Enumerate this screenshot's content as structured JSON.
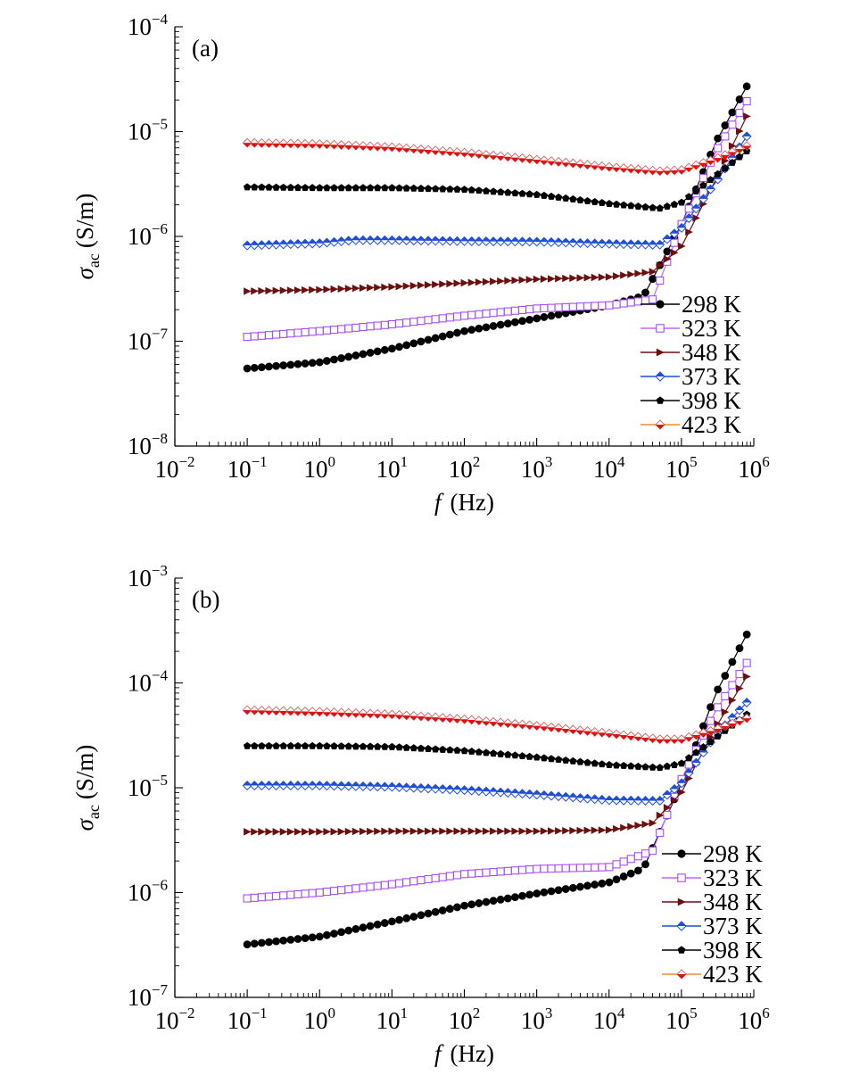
{
  "chart_data": [
    {
      "type": "scatter",
      "panel_label": "(a)",
      "xlabel": {
        "italic": "f",
        "rest": "(Hz)"
      },
      "ylabel": {
        "symbol": "σ",
        "subscript": "ac",
        "rest": "(S/m)"
      },
      "x_scale": "log",
      "y_scale": "log",
      "xlim": [
        0.01,
        1000000
      ],
      "ylim": [
        1e-08,
        0.0001
      ],
      "x_ticks": [
        {
          "base": "10",
          "exp": "−2",
          "value": 0.01
        },
        {
          "base": "10",
          "exp": "−1",
          "value": 0.1
        },
        {
          "base": "10",
          "exp": "0",
          "value": 1
        },
        {
          "base": "10",
          "exp": "1",
          "value": 10
        },
        {
          "base": "10",
          "exp": "2",
          "value": 100
        },
        {
          "base": "10",
          "exp": "3",
          "value": 1000
        },
        {
          "base": "10",
          "exp": "4",
          "value": 10000
        },
        {
          "base": "10",
          "exp": "5",
          "value": 100000
        },
        {
          "base": "10",
          "exp": "6",
          "value": 1000000
        }
      ],
      "y_ticks": [
        {
          "base": "10",
          "exp": "−8",
          "value": 1e-08
        },
        {
          "base": "10",
          "exp": "−7",
          "value": 1e-07
        },
        {
          "base": "10",
          "exp": "−6",
          "value": 1e-06
        },
        {
          "base": "10",
          "exp": "−5",
          "value": 1e-05
        },
        {
          "base": "10",
          "exp": "−4",
          "value": 0.0001
        }
      ],
      "grid": false,
      "legend_position": "lower-right",
      "series": [
        {
          "name": "298 K",
          "color": "#000000",
          "line_color": "#000000",
          "marker": "circle-filled",
          "anchors": [
            [
              0.1,
              5.5e-08
            ],
            [
              1,
              6.3e-08
            ],
            [
              10,
              8.5e-08
            ],
            [
              100,
              1.25e-07
            ],
            [
              1000,
              1.65e-07
            ],
            [
              10000,
              2.2e-07
            ],
            [
              30000,
              2.7e-07
            ],
            [
              100000,
              1.3e-06
            ],
            [
              300000,
              8e-06
            ],
            [
              800000,
              2.7e-05
            ]
          ]
        },
        {
          "name": "323 K",
          "color": "#a64dff",
          "line_color": "#c266ff",
          "marker": "square-open",
          "anchors": [
            [
              0.1,
              1.1e-07
            ],
            [
              1,
              1.25e-07
            ],
            [
              10,
              1.45e-07
            ],
            [
              100,
              1.75e-07
            ],
            [
              1000,
              2.05e-07
            ],
            [
              10000,
              2.2e-07
            ],
            [
              40000,
              2.5e-07
            ],
            [
              100000,
              1.3e-06
            ],
            [
              300000,
              6.5e-06
            ],
            [
              800000,
              1.95e-05
            ]
          ]
        },
        {
          "name": "348 K",
          "color": "#6b0f0f",
          "line_color": "#6b0f0f",
          "marker": "triangle-right-filled",
          "anchors": [
            [
              0.1,
              3e-07
            ],
            [
              1,
              3.1e-07
            ],
            [
              10,
              3.3e-07
            ],
            [
              100,
              3.6e-07
            ],
            [
              1000,
              3.9e-07
            ],
            [
              10000,
              4.1e-07
            ],
            [
              40000,
              4.6e-07
            ],
            [
              100000,
              8e-07
            ],
            [
              300000,
              3.5e-06
            ],
            [
              800000,
              1.4e-05
            ]
          ]
        },
        {
          "name": "373 K",
          "color": "#1f4fd6",
          "line_color": "#1f4fd6",
          "marker": "diamond-half",
          "anchors": [
            [
              0.1,
              8.2e-07
            ],
            [
              1,
              8.6e-07
            ],
            [
              3,
              9.2e-07
            ],
            [
              10,
              9.2e-07
            ],
            [
              100,
              9e-07
            ],
            [
              1000,
              8.9e-07
            ],
            [
              10000,
              8.5e-07
            ],
            [
              50000,
              8.3e-07
            ],
            [
              100000,
              1.2e-06
            ],
            [
              300000,
              3.3e-06
            ],
            [
              800000,
              9e-06
            ]
          ]
        },
        {
          "name": "398 K",
          "color": "#000000",
          "line_color": "#000000",
          "marker": "pentagon-filled",
          "anchors": [
            [
              0.1,
              2.95e-06
            ],
            [
              1,
              2.9e-06
            ],
            [
              10,
              2.9e-06
            ],
            [
              100,
              2.8e-06
            ],
            [
              1000,
              2.5e-06
            ],
            [
              10000,
              2.05e-06
            ],
            [
              50000,
              1.85e-06
            ],
            [
              100000,
              2.1e-06
            ],
            [
              300000,
              3.8e-06
            ],
            [
              800000,
              6.5e-06
            ]
          ]
        },
        {
          "name": "423 K",
          "color": "#e01010",
          "line_color": "#f08c2a",
          "marker": "diamond-bicolor",
          "anchors": [
            [
              0.1,
              7.8e-06
            ],
            [
              1,
              7.6e-06
            ],
            [
              10,
              7.1e-06
            ],
            [
              100,
              6.3e-06
            ],
            [
              1000,
              5.4e-06
            ],
            [
              10000,
              4.6e-06
            ],
            [
              50000,
              4.2e-06
            ],
            [
              100000,
              4.3e-06
            ],
            [
              300000,
              5.5e-06
            ],
            [
              800000,
              7.3e-06
            ]
          ]
        }
      ]
    },
    {
      "type": "scatter",
      "panel_label": "(b)",
      "xlabel": {
        "italic": "f",
        "rest": "(Hz)"
      },
      "ylabel": {
        "symbol": "σ",
        "subscript": "ac",
        "rest": "(S/m)"
      },
      "x_scale": "log",
      "y_scale": "log",
      "xlim": [
        0.01,
        1000000
      ],
      "ylim": [
        1e-07,
        0.001
      ],
      "x_ticks": [
        {
          "base": "10",
          "exp": "−2",
          "value": 0.01
        },
        {
          "base": "10",
          "exp": "−1",
          "value": 0.1
        },
        {
          "base": "10",
          "exp": "0",
          "value": 1
        },
        {
          "base": "10",
          "exp": "1",
          "value": 10
        },
        {
          "base": "10",
          "exp": "2",
          "value": 100
        },
        {
          "base": "10",
          "exp": "3",
          "value": 1000
        },
        {
          "base": "10",
          "exp": "4",
          "value": 10000
        },
        {
          "base": "10",
          "exp": "5",
          "value": 100000
        },
        {
          "base": "10",
          "exp": "6",
          "value": 1000000
        }
      ],
      "y_ticks": [
        {
          "base": "10",
          "exp": "−7",
          "value": 1e-07
        },
        {
          "base": "10",
          "exp": "−6",
          "value": 1e-06
        },
        {
          "base": "10",
          "exp": "−5",
          "value": 1e-05
        },
        {
          "base": "10",
          "exp": "−4",
          "value": 0.0001
        },
        {
          "base": "10",
          "exp": "−3",
          "value": 0.001
        }
      ],
      "grid": false,
      "legend_position": "lower-right",
      "series": [
        {
          "name": "298 K",
          "color": "#000000",
          "line_color": "#000000",
          "marker": "circle-filled",
          "anchors": [
            [
              0.1,
              3.2e-07
            ],
            [
              1,
              3.8e-07
            ],
            [
              10,
              5.3e-07
            ],
            [
              100,
              7.5e-07
            ],
            [
              1000,
              9.8e-07
            ],
            [
              10000,
              1.25e-06
            ],
            [
              30000,
              1.7e-06
            ],
            [
              100000,
              1.1e-05
            ],
            [
              300000,
              8e-05
            ],
            [
              800000,
              0.00029
            ]
          ]
        },
        {
          "name": "323 K",
          "color": "#a64dff",
          "line_color": "#c266ff",
          "marker": "square-open",
          "anchors": [
            [
              0.1,
              8.8e-07
            ],
            [
              1,
              1e-06
            ],
            [
              10,
              1.2e-06
            ],
            [
              100,
              1.5e-06
            ],
            [
              1000,
              1.68e-06
            ],
            [
              10000,
              1.75e-06
            ],
            [
              40000,
              2.5e-06
            ],
            [
              100000,
              1.2e-05
            ],
            [
              300000,
              5.5e-05
            ],
            [
              800000,
              0.000155
            ]
          ]
        },
        {
          "name": "348 K",
          "color": "#6b0f0f",
          "line_color": "#6b0f0f",
          "marker": "triangle-right-filled",
          "anchors": [
            [
              0.1,
              3.8e-06
            ],
            [
              1,
              3.8e-06
            ],
            [
              10,
              3.85e-06
            ],
            [
              100,
              3.85e-06
            ],
            [
              1000,
              3.85e-06
            ],
            [
              10000,
              3.95e-06
            ],
            [
              40000,
              4.6e-06
            ],
            [
              100000,
              9e-06
            ],
            [
              300000,
              3.8e-05
            ],
            [
              800000,
              0.000115
            ]
          ]
        },
        {
          "name": "373 K",
          "color": "#1f4fd6",
          "line_color": "#1f4fd6",
          "marker": "diamond-half",
          "anchors": [
            [
              0.1,
              1.05e-05
            ],
            [
              1,
              1.05e-05
            ],
            [
              10,
              1.02e-05
            ],
            [
              100,
              9.5e-06
            ],
            [
              1000,
              8.6e-06
            ],
            [
              10000,
              7.6e-06
            ],
            [
              50000,
              7.5e-06
            ],
            [
              100000,
              1.1e-05
            ],
            [
              300000,
              3.2e-05
            ],
            [
              800000,
              6.5e-05
            ]
          ]
        },
        {
          "name": "398 K",
          "color": "#000000",
          "line_color": "#000000",
          "marker": "pentagon-filled",
          "anchors": [
            [
              0.1,
              2.5e-05
            ],
            [
              1,
              2.5e-05
            ],
            [
              10,
              2.45e-05
            ],
            [
              100,
              2.25e-05
            ],
            [
              1000,
              1.95e-05
            ],
            [
              10000,
              1.65e-05
            ],
            [
              50000,
              1.55e-05
            ],
            [
              100000,
              1.7e-05
            ],
            [
              300000,
              3e-05
            ],
            [
              800000,
              5e-05
            ]
          ]
        },
        {
          "name": "423 K",
          "color": "#e01010",
          "line_color": "#f08c2a",
          "marker": "diamond-bicolor",
          "anchors": [
            [
              0.1,
              5.5e-05
            ],
            [
              1,
              5.3e-05
            ],
            [
              10,
              5e-05
            ],
            [
              100,
              4.5e-05
            ],
            [
              1000,
              3.9e-05
            ],
            [
              10000,
              3.3e-05
            ],
            [
              50000,
              2.9e-05
            ],
            [
              100000,
              2.9e-05
            ],
            [
              300000,
              3.6e-05
            ],
            [
              800000,
              4.6e-05
            ]
          ]
        }
      ]
    }
  ]
}
